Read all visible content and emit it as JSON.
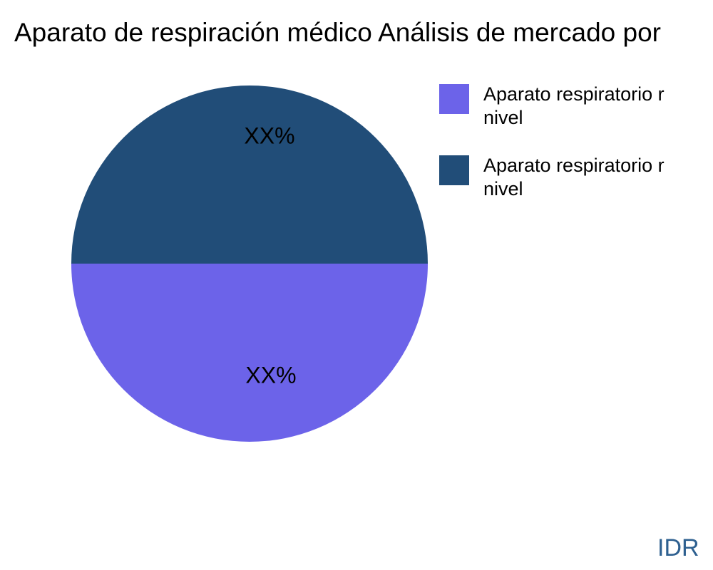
{
  "title": {
    "text": "Aparato de respiración médico Análisis de mercado por",
    "color": "#000000"
  },
  "pie": {
    "top_slice": {
      "label": "XX%",
      "color": "#214d78"
    },
    "bottom_slice": {
      "label": "XX%",
      "color": "#6c63e9"
    }
  },
  "legend": {
    "items": [
      {
        "swatch_color": "#6c63e9",
        "label_line1": "Aparato respiratorio r",
        "label_line2": "nivel"
      },
      {
        "swatch_color": "#214d78",
        "label_line1": "Aparato respiratorio r",
        "label_line2": "nivel"
      }
    ]
  },
  "watermark": {
    "text": "IDR",
    "color": "#2e6090"
  },
  "chart_data": {
    "type": "pie",
    "title": "Aparato de respiración médico Análisis de mercado por",
    "slices": [
      {
        "name": "Aparato respiratorio r nivel",
        "position": "top",
        "value_label": "XX%",
        "value_pct_estimated": 50,
        "color": "#214d78"
      },
      {
        "name": "Aparato respiratorio r nivel",
        "position": "bottom",
        "value_label": "XX%",
        "value_pct_estimated": 50,
        "color": "#6c63e9"
      }
    ],
    "legend_position": "upper-right",
    "data_labels_inside": true,
    "watermark": "IDR"
  }
}
